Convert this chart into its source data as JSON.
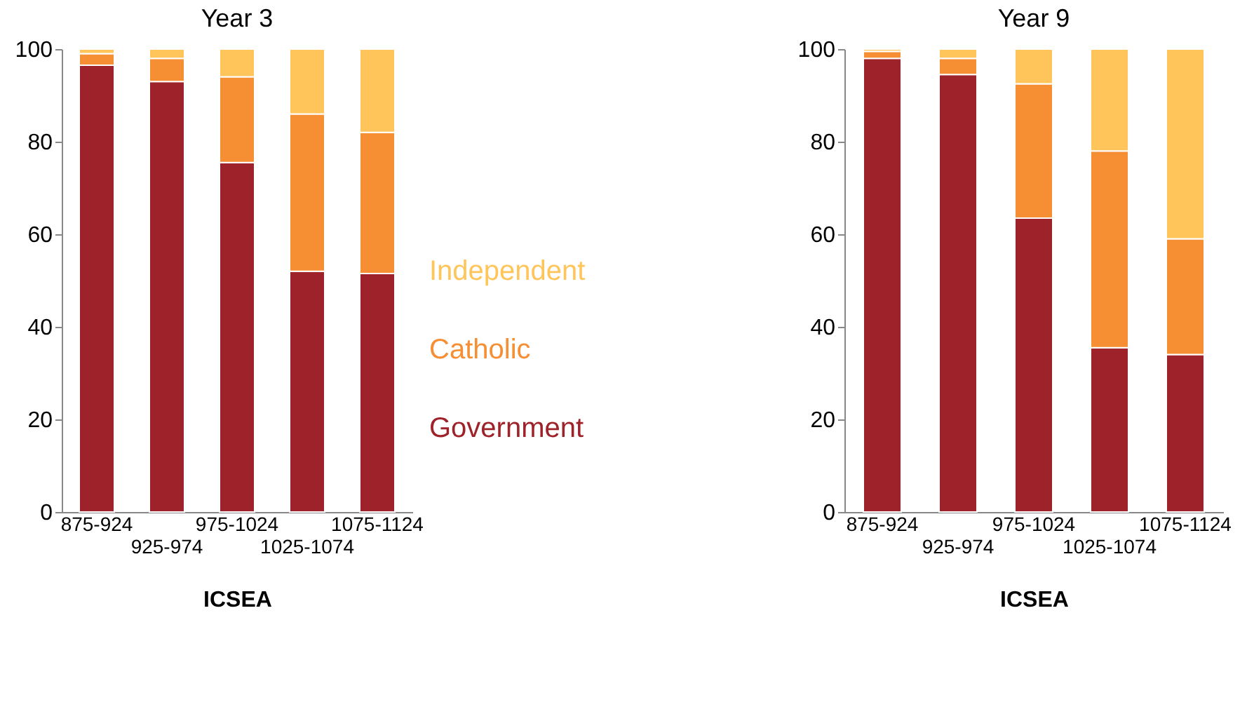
{
  "chart_data": [
    {
      "type": "bar",
      "stacked": true,
      "title": "Year 3",
      "xlabel": "ICSEA",
      "categories": [
        "875-924",
        "925-974",
        "975-1024",
        "1025-1074",
        "1075-1124"
      ],
      "ylim": [
        0,
        100
      ],
      "yticks": [
        0,
        20,
        40,
        60,
        80,
        100
      ],
      "series": [
        {
          "name": "Government",
          "color": "#9e2229",
          "values": [
            96.5,
            93,
            75.5,
            52,
            51.5
          ]
        },
        {
          "name": "Catholic",
          "color": "#f68e33",
          "values": [
            2.5,
            5,
            18.5,
            34,
            30.5
          ]
        },
        {
          "name": "Independent",
          "color": "#ffc55a",
          "values": [
            1,
            2,
            6,
            14,
            18
          ]
        }
      ]
    },
    {
      "type": "bar",
      "stacked": true,
      "title": "Year 9",
      "xlabel": "ICSEA",
      "categories": [
        "875-924",
        "925-974",
        "975-1024",
        "1025-1074",
        "1075-1124"
      ],
      "ylim": [
        0,
        100
      ],
      "yticks": [
        0,
        20,
        40,
        60,
        80,
        100
      ],
      "series": [
        {
          "color": "#9e2229",
          "values": [
            98,
            94.5,
            63.5,
            35.5,
            34
          ]
        },
        {
          "color": "#f68e33",
          "values": [
            1.5,
            3.5,
            29,
            42.5,
            25
          ]
        },
        {
          "color": "#ffc55a",
          "values": [
            0.5,
            2,
            7.5,
            22,
            41
          ]
        }
      ]
    }
  ]
}
